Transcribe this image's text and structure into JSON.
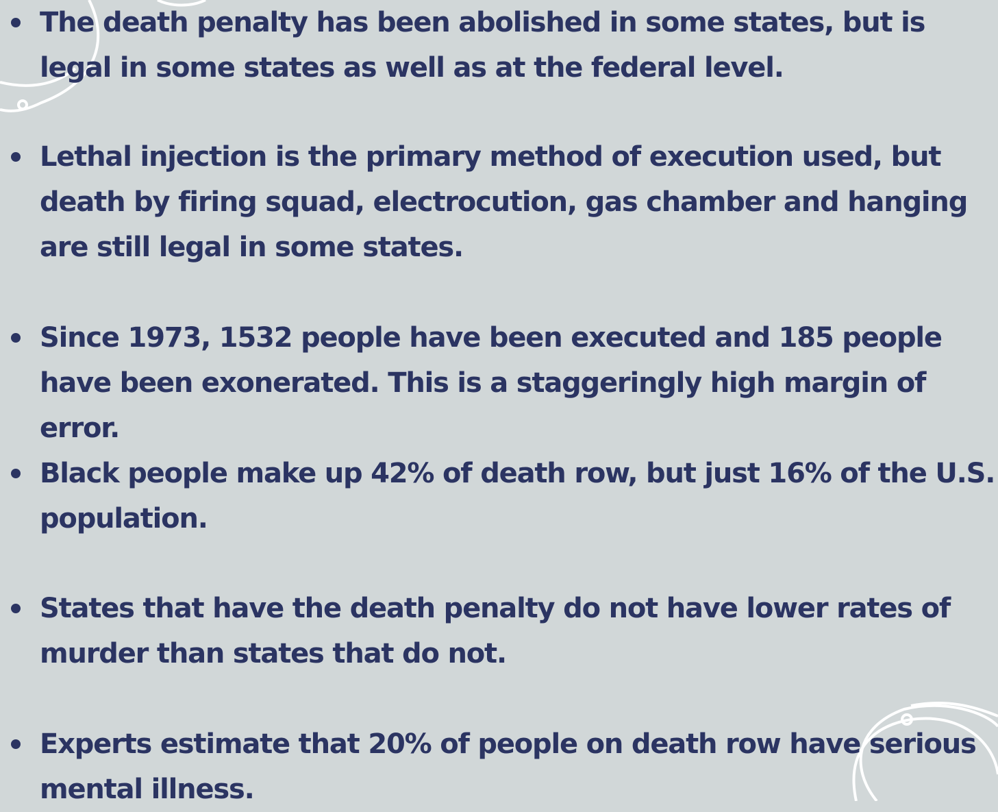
{
  "bullets": [
    "The death penalty has been abolished in some states, but is legal in some states as well as at the federal level.",
    "Lethal injection is the primary method of execution used, but death by firing squad, electrocution, gas chamber and hanging are still legal in some states.",
    "Since 1973, 1532 people have been executed and 185 people have been exonerated. This is a staggeringly high margin of error.",
    "Black people make up 42% of death row, but just 16% of the U.S. population.",
    "States that have the death penalty do not have lower rates of murder than states that do not.",
    "Experts estimate that 20% of people on death row have serious mental illness."
  ]
}
